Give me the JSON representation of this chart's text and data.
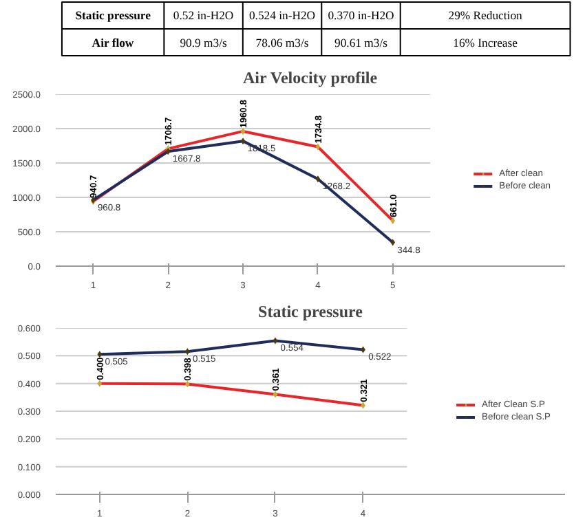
{
  "chart_data": [
    {
      "type": "other",
      "annotations": [
        "Static pressure",
        "0.52 in-H2O",
        "0.524 in-H2O",
        "0.370 in-H2O",
        "29% Reduction",
        "Air flow",
        "90.9 m3/s",
        "78.06 m3/s",
        "90.61 m3/s",
        "16% Increase"
      ]
    },
    {
      "type": "line",
      "title": "Air Velocity profile",
      "categories": [
        "1",
        "2",
        "3",
        "4",
        "5"
      ],
      "series": [
        {
          "name": "After clean",
          "color": "#e8262a",
          "values": [
            940.7,
            1706.7,
            1960.8,
            1734.8,
            661.0
          ],
          "value_labels": [
            "940.7",
            "1706.7",
            "1960.8",
            "1734.8",
            "661.0"
          ]
        },
        {
          "name": "Before clean",
          "color": "#1f2d5c",
          "values": [
            960.8,
            1667.8,
            1818.5,
            1268.2,
            344.8
          ],
          "value_labels": [
            "960.8",
            "1667.8",
            "1818.5",
            "1268.2",
            "344.8"
          ]
        }
      ],
      "ylim": [
        0,
        2500
      ],
      "yticks": [
        {
          "value": 0,
          "label": "0.0"
        },
        {
          "value": 500,
          "label": "500.0"
        },
        {
          "value": 1000,
          "label": "1000.0"
        },
        {
          "value": 1500,
          "label": "1500.0"
        },
        {
          "value": 2000,
          "label": "2000.0"
        },
        {
          "value": 2500,
          "label": "2500.0"
        }
      ],
      "grid": "y",
      "legend": "right",
      "marker": "diamond",
      "line_style": "solid"
    },
    {
      "type": "line",
      "title": "Static pressure",
      "categories": [
        "1",
        "2",
        "3",
        "4"
      ],
      "series": [
        {
          "name": "After Clean S.P",
          "color": "#e8262a",
          "values": [
            0.4,
            0.398,
            0.361,
            0.321
          ],
          "value_labels": [
            "0.400",
            "0.398",
            "0.361",
            "0.321"
          ]
        },
        {
          "name": "Before clean S.P",
          "color": "#1f2d5c",
          "values": [
            0.505,
            0.515,
            0.554,
            0.522
          ],
          "value_labels": [
            "0.505",
            "0.515",
            "0.554",
            "0.522"
          ]
        }
      ],
      "ylim": [
        0,
        0.6
      ],
      "yticks": [
        {
          "value": 0,
          "label": "0.000"
        },
        {
          "value": 0.1,
          "label": "0.100"
        },
        {
          "value": 0.2,
          "label": "0.200"
        },
        {
          "value": 0.3,
          "label": "0.300"
        },
        {
          "value": 0.4,
          "label": "0.400"
        },
        {
          "value": 0.5,
          "label": "0.500"
        },
        {
          "value": 0.6,
          "label": "0.600"
        }
      ],
      "grid": "y",
      "legend": "right",
      "marker": "diamond",
      "line_style": "solid"
    }
  ]
}
